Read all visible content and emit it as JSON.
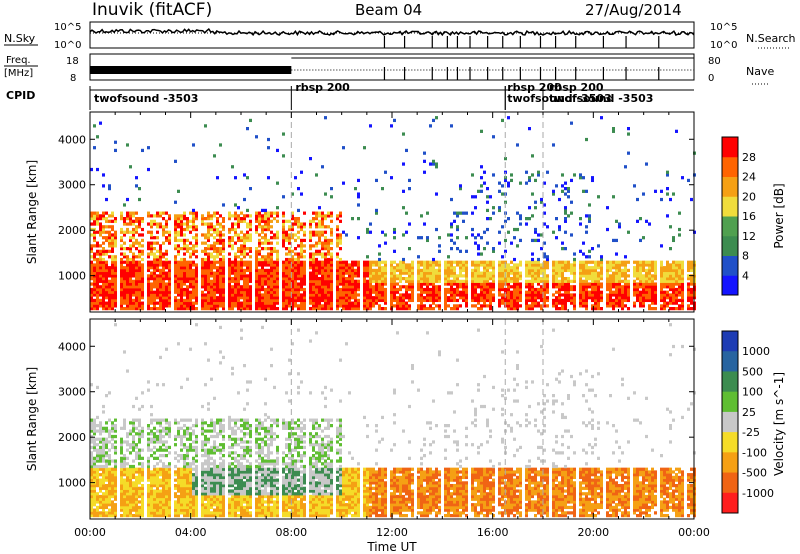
{
  "header": {
    "station": "Inuvik (fitACF)",
    "beam": "Beam 04",
    "date": "27/Aug/2014"
  },
  "top_panels": {
    "nsky_label": "N.Sky",
    "nsearch_label": "N.Search",
    "nsky_ticks": [
      "10^5",
      "10^0"
    ],
    "nsearch_ticks": [
      "10^5",
      "10^0"
    ],
    "freq_label": [
      "Freq.",
      "[MHz]"
    ],
    "freq_ticks": [
      "18",
      "8"
    ],
    "nave_label": "Nave",
    "nave_ticks": [
      "80",
      "0"
    ],
    "cpid_label": "CPID",
    "cpid_modes": [
      {
        "name": "twofsound -3503",
        "start_hour": 0.0
      },
      {
        "name": "rbsp 200",
        "start_hour": 8.0
      },
      {
        "name": "rbsp 200",
        "start_hour": 16.5
      },
      {
        "name": "twofsound -3503",
        "start_hour": 16.5
      },
      {
        "name": "rbsp 200",
        "start_hour": 18.0
      },
      {
        "name": "twofsound -3503",
        "start_hour": 18.0
      }
    ]
  },
  "chart_data": [
    {
      "type": "heatmap",
      "title": "",
      "xlabel": "",
      "ylabel": "Slant Range [km]",
      "xlim": [
        0,
        24
      ],
      "ylim": [
        200,
        4600
      ],
      "y_ticks": [
        1000,
        2000,
        3000,
        4000
      ],
      "colorbar_label": "Power [dB]",
      "colorbar_ticks": [
        "4",
        "8",
        "12",
        "16",
        "20",
        "24",
        "28"
      ],
      "colorbar_colors": [
        "#1414ff",
        "#2050c8",
        "#3c8c50",
        "#50a050",
        "#f0dc3c",
        "#f5a014",
        "#ff6400",
        "#ff0000"
      ],
      "mode_change_hours": [
        8.0,
        16.5,
        18.0
      ]
    },
    {
      "type": "heatmap",
      "title": "",
      "xlabel": "Time UT",
      "ylabel": "Slant Range [km]",
      "xlim": [
        0,
        24
      ],
      "ylim": [
        200,
        4600
      ],
      "y_ticks": [
        1000,
        2000,
        3000,
        4000
      ],
      "x_ticks": [
        "00:00",
        "04:00",
        "08:00",
        "12:00",
        "16:00",
        "20:00",
        "00:00"
      ],
      "colorbar_label": "Velocity [m s^-1]",
      "colorbar_ticks": [
        "1000",
        "500",
        "100",
        "25",
        "-25",
        "-100",
        "-500",
        "-1000"
      ],
      "colorbar_colors": [
        "#1e3cb4",
        "#2864a0",
        "#3c8c50",
        "#5fbe32",
        "#c8c8c8",
        "#f5dc28",
        "#f5a014",
        "#f06414",
        "#ff1e1e"
      ],
      "mode_change_hours": [
        8.0,
        16.5,
        18.0
      ]
    }
  ]
}
